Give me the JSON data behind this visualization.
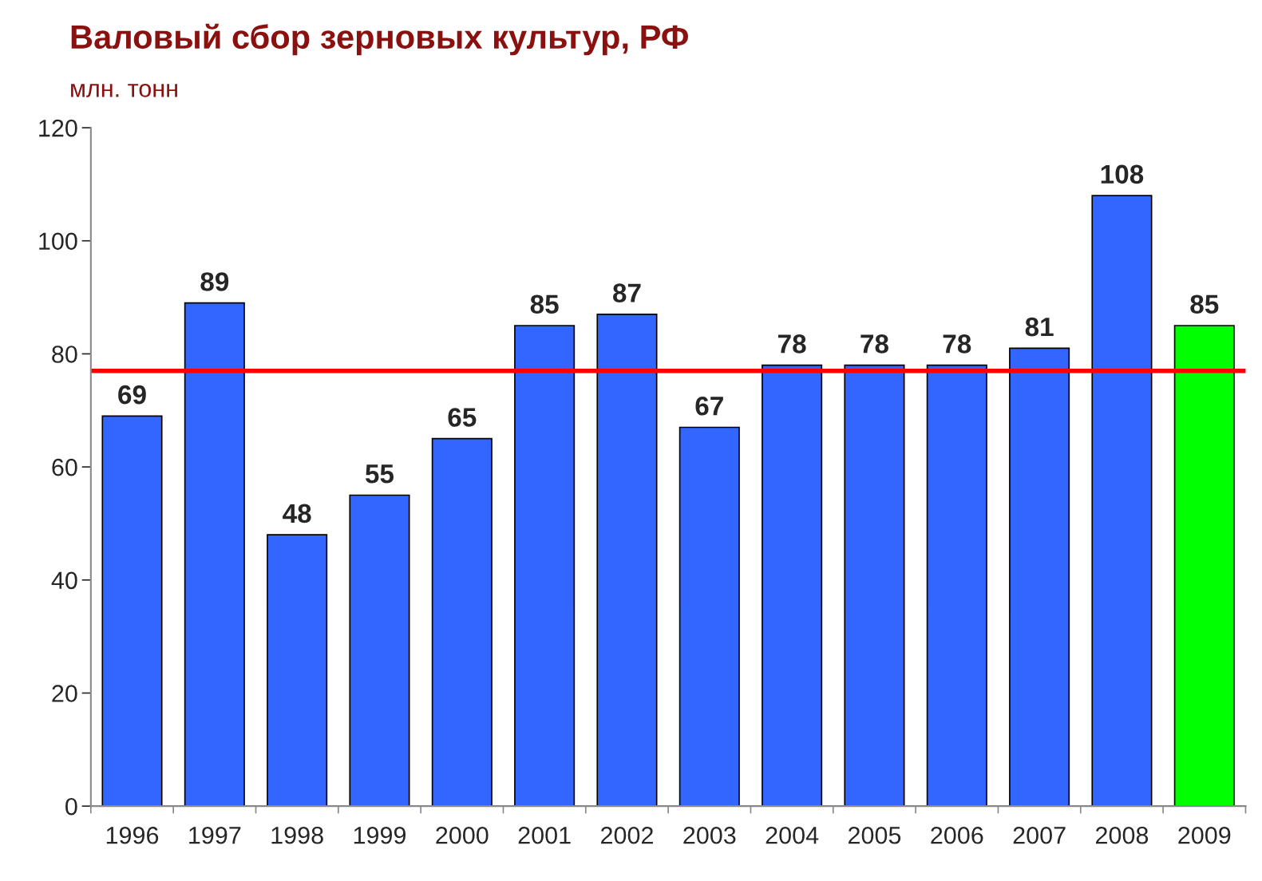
{
  "chart_data": {
    "type": "bar",
    "title": "Валовый сбор зерновых культур, РФ",
    "subtitle": "млн. тонн",
    "categories": [
      "1996",
      "1997",
      "1998",
      "1999",
      "2000",
      "2001",
      "2002",
      "2003",
      "2004",
      "2005",
      "2006",
      "2007",
      "2008",
      "2009"
    ],
    "values": [
      69,
      89,
      48,
      55,
      65,
      85,
      87,
      67,
      78,
      78,
      78,
      81,
      108,
      85
    ],
    "colors": [
      "#3366ff",
      "#3366ff",
      "#3366ff",
      "#3366ff",
      "#3366ff",
      "#3366ff",
      "#3366ff",
      "#3366ff",
      "#3366ff",
      "#3366ff",
      "#3366ff",
      "#3366ff",
      "#3366ff",
      "#00ff00"
    ],
    "ylim": [
      0,
      120
    ],
    "yticks": [
      0,
      20,
      40,
      60,
      80,
      100,
      120
    ],
    "grid": false,
    "data_labels": true,
    "ref_lines": [
      {
        "axis": "y",
        "value": 77,
        "color": "#ff0000",
        "line_style": "solid"
      }
    ]
  }
}
